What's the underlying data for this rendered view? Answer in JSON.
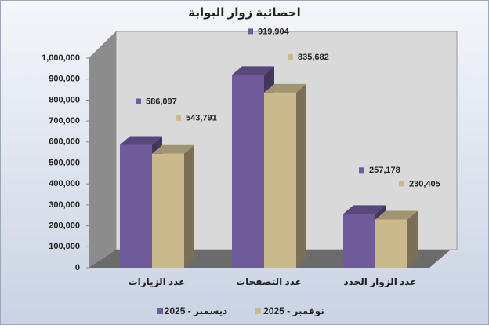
{
  "chart_data": {
    "type": "bar3d",
    "title": "احصائية زوار البوابة",
    "categories": [
      "عدد الزيارات",
      "عدد التصفحات",
      "عدد الزوار الجدد"
    ],
    "series": [
      {
        "name": "ديسمبر - 2025",
        "color": "#6f5a9a",
        "values": [
          586097,
          919904,
          257178
        ],
        "value_labels": [
          "586,097",
          "919,904",
          "257,178"
        ]
      },
      {
        "name": "نوفمبر - 2025",
        "color": "#c9b98c",
        "values": [
          543791,
          835682,
          230405
        ],
        "value_labels": [
          "543,791",
          "835,682",
          "230,405"
        ]
      }
    ],
    "ylim": [
      0,
      1000000
    ],
    "yticks": [
      0,
      {
        "value": 100000,
        "label": "100,000"
      },
      {
        "value": 200000,
        "label": "200,000"
      },
      {
        "value": 300000,
        "label": "300,000"
      },
      {
        "value": 400000,
        "label": "400,000"
      },
      {
        "value": 500000,
        "label": "500,000"
      },
      {
        "value": 600000,
        "label": "600,000"
      },
      {
        "value": 700000,
        "label": "700,000"
      },
      {
        "value": 800000,
        "label": "800,000"
      },
      {
        "value": 900000,
        "label": "900,000"
      },
      {
        "value": 1000000,
        "label": "1,000,000"
      }
    ],
    "grid": false,
    "legend": "bottom"
  }
}
